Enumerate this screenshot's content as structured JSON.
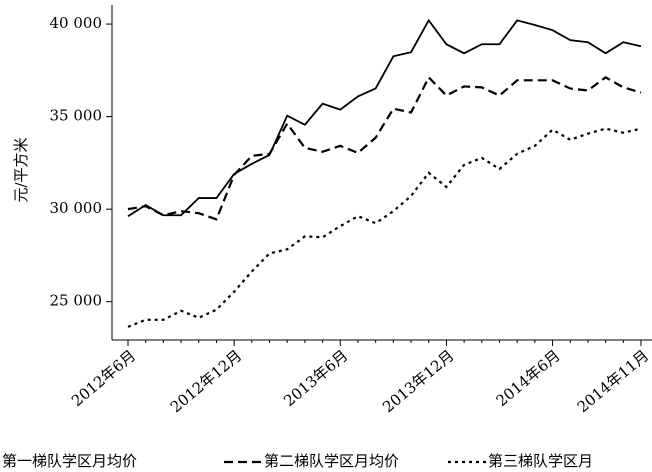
{
  "chart_data": {
    "type": "line",
    "y_label": "元/平方米",
    "categories": [
      "2012年6月",
      null,
      null,
      null,
      null,
      null,
      "2012年12月",
      null,
      null,
      null,
      null,
      null,
      "2013年6月",
      null,
      null,
      null,
      null,
      null,
      "2013年12月",
      null,
      null,
      null,
      null,
      null,
      "2014年6月",
      null,
      null,
      null,
      null,
      "2014年11月"
    ],
    "series": [
      {
        "name": "第一梯队学区月均价",
        "color": "#000000",
        "dash": "solid",
        "values": [
          29620,
          30220,
          29670,
          29670,
          30600,
          30600,
          31900,
          32450,
          32930,
          35050,
          34560,
          35700,
          35380,
          36090,
          36520,
          38260,
          38480,
          40200,
          38910,
          38420,
          38910,
          38910,
          40200,
          39950,
          39670,
          39130,
          39020,
          38420,
          39020,
          38800
        ]
      },
      {
        "name": "第二梯队学区月均价",
        "color": "#000000",
        "dash": "dashed",
        "values": [
          30000,
          30160,
          29670,
          29890,
          29780,
          29450,
          31850,
          32880,
          32990,
          34620,
          33310,
          33100,
          33420,
          33040,
          33860,
          35430,
          35220,
          37120,
          36140,
          36630,
          36580,
          36140,
          36960,
          36960,
          36960,
          36520,
          36410,
          37120,
          36580,
          36300
        ]
      },
      {
        "name": "第三梯队学区月",
        "color": "#000000",
        "dash": "dotted",
        "values": [
          23640,
          24020,
          24020,
          24510,
          24130,
          24570,
          25540,
          26630,
          27610,
          27830,
          28530,
          28480,
          29080,
          29620,
          29240,
          29890,
          30710,
          31960,
          31200,
          32390,
          32770,
          32170,
          32990,
          33420,
          34290,
          33750,
          34080,
          34350,
          34130,
          34350
        ]
      }
    ],
    "ylim": [
      22930,
      41030
    ],
    "yticks": [
      {
        "value": 25000,
        "label": "25 000"
      },
      {
        "value": 30000,
        "label": "30 000"
      },
      {
        "value": 35000,
        "label": "35 000"
      },
      {
        "value": 40000,
        "label": "40 000"
      }
    ],
    "grid": false
  }
}
